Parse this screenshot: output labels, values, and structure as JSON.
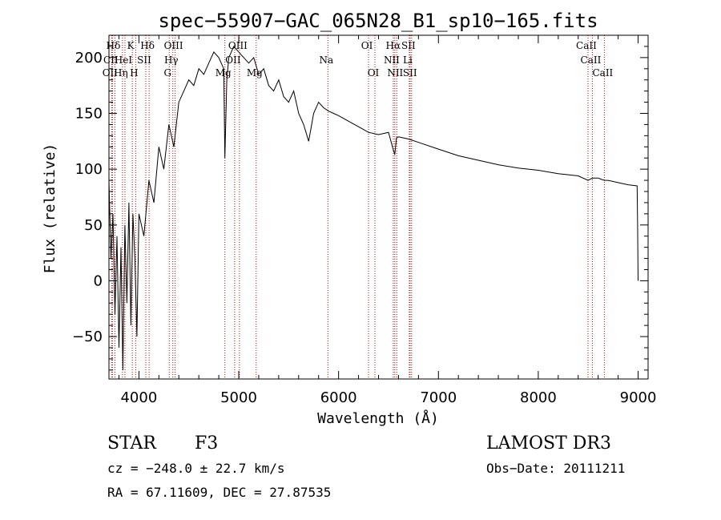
{
  "chart_data": {
    "type": "line",
    "title": "spec−55907−GAC_065N28_B1_sp10−165.fits",
    "xlabel": "Wavelength (Å)",
    "ylabel": "Flux (relative)",
    "xlim": [
      3700,
      9100
    ],
    "ylim": [
      -88,
      220
    ],
    "xticks": [
      4000,
      5000,
      6000,
      7000,
      8000,
      9000
    ],
    "yticks": [
      -50,
      0,
      50,
      100,
      150,
      200
    ],
    "ytick_labels": [
      "−50",
      "0",
      "50",
      "100",
      "150",
      "200"
    ],
    "spectrum": {
      "x": [
        3700,
        3720,
        3740,
        3760,
        3780,
        3800,
        3820,
        3840,
        3860,
        3880,
        3900,
        3920,
        3940,
        3960,
        3980,
        4000,
        4050,
        4100,
        4150,
        4200,
        4250,
        4300,
        4350,
        4400,
        4450,
        4500,
        4550,
        4600,
        4650,
        4700,
        4750,
        4800,
        4850,
        4861,
        4880,
        4900,
        4950,
        5000,
        5050,
        5100,
        5150,
        5200,
        5250,
        5300,
        5350,
        5400,
        5450,
        5500,
        5550,
        5600,
        5650,
        5700,
        5720,
        5750,
        5800,
        5850,
        5900,
        5950,
        6000,
        6100,
        6200,
        6300,
        6400,
        6500,
        6540,
        6563,
        6580,
        6600,
        6700,
        6800,
        7000,
        7200,
        7400,
        7600,
        7800,
        8000,
        8200,
        8400,
        8498,
        8542,
        8600,
        8662,
        8700,
        8800,
        8900,
        8990,
        8995,
        9000
      ],
      "y": [
        90,
        20,
        60,
        -30,
        40,
        -60,
        30,
        -80,
        50,
        -20,
        70,
        -40,
        60,
        20,
        -50,
        60,
        40,
        90,
        70,
        120,
        100,
        140,
        120,
        160,
        170,
        180,
        175,
        190,
        185,
        195,
        205,
        200,
        190,
        110,
        180,
        200,
        210,
        205,
        200,
        195,
        200,
        185,
        190,
        175,
        170,
        180,
        165,
        160,
        170,
        150,
        140,
        125,
        135,
        150,
        160,
        155,
        152,
        150,
        148,
        143,
        138,
        133,
        131,
        133,
        120,
        113,
        128,
        129,
        127,
        124,
        118,
        112,
        108,
        104,
        101,
        99,
        96,
        94,
        90,
        92,
        92,
        90,
        90,
        88,
        86,
        85,
        50,
        0
      ]
    },
    "spectral_lines": [
      {
        "name": "Hδ",
        "x": 3760,
        "row": 0
      },
      {
        "name": "K",
        "x": 3934,
        "row": 0
      },
      {
        "name": "Hδ",
        "x": 4102,
        "row": 0
      },
      {
        "name": "OIII",
        "x": 4363,
        "row": 0
      },
      {
        "name": "OIII",
        "x": 5007,
        "row": 0
      },
      {
        "name": "OI",
        "x": 6300,
        "row": 0
      },
      {
        "name": "Hα",
        "x": 6563,
        "row": 0
      },
      {
        "name": "SII",
        "x": 6716,
        "row": 0
      },
      {
        "name": "CaII",
        "x": 8498,
        "row": 0
      },
      {
        "name": "CII",
        "x": 3735,
        "row": 1
      },
      {
        "name": "HeI",
        "x": 3860,
        "row": 1
      },
      {
        "name": "SII",
        "x": 4069,
        "row": 1
      },
      {
        "name": "Hγ",
        "x": 4340,
        "row": 1
      },
      {
        "name": "OII",
        "x": 4959,
        "row": 1
      },
      {
        "name": "Na",
        "x": 5893,
        "row": 1
      },
      {
        "name": "NII",
        "x": 6548,
        "row": 1
      },
      {
        "name": "Li",
        "x": 6708,
        "row": 1
      },
      {
        "name": "CaII",
        "x": 8542,
        "row": 1
      },
      {
        "name": "OII",
        "x": 3727,
        "row": 2
      },
      {
        "name": "Hη",
        "x": 3835,
        "row": 2
      },
      {
        "name": "H",
        "x": 3968,
        "row": 2
      },
      {
        "name": "G",
        "x": 4304,
        "row": 2
      },
      {
        "name": "Mg",
        "x": 4861,
        "row": 2
      },
      {
        "name": "Mg",
        "x": 5175,
        "row": 2
      },
      {
        "name": "OI",
        "x": 6364,
        "row": 2
      },
      {
        "name": "NII",
        "x": 6583,
        "row": 2
      },
      {
        "name": "SII",
        "x": 6731,
        "row": 2
      },
      {
        "name": "CaII",
        "x": 8662,
        "row": 2
      }
    ]
  },
  "info": {
    "class": "STAR",
    "subclass": "F3",
    "survey": "LAMOST DR3",
    "cz": "cz = −248.0 ± 22.7 km/s",
    "obs_date": "Obs−Date: 20111211",
    "radec": "RA =  67.11609, DEC =  27.87535"
  },
  "colors": {
    "line_marker": "#cc0000",
    "spectrum": "#000000"
  }
}
